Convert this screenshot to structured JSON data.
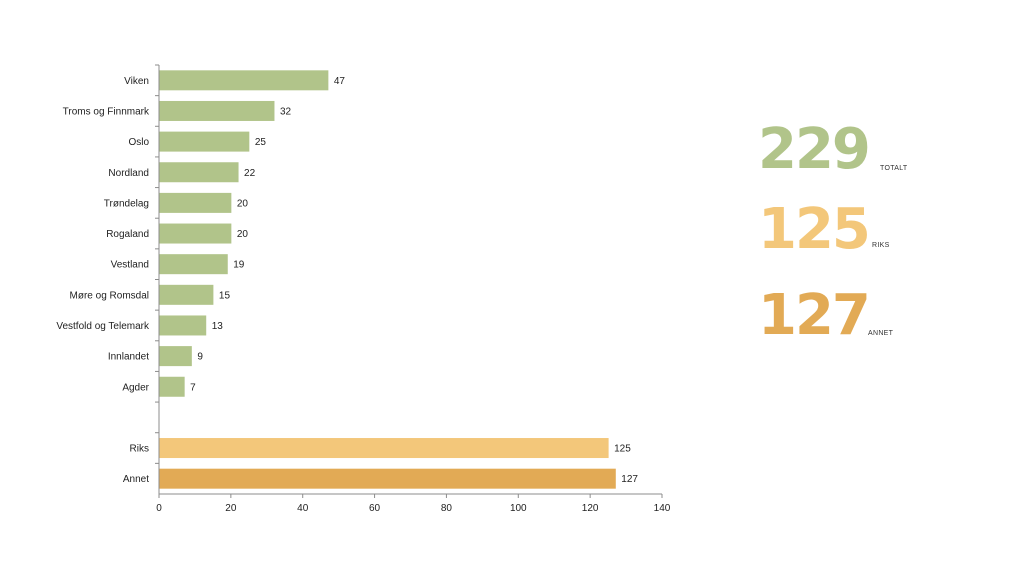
{
  "chart_data": {
    "type": "bar",
    "orientation": "horizontal",
    "title": "",
    "xlabel": "",
    "ylabel": "",
    "xlim": [
      0,
      140
    ],
    "x_ticks": [
      0,
      20,
      40,
      60,
      80,
      100,
      120,
      140
    ],
    "grid": false,
    "legend": "none",
    "categories": [
      "Viken",
      "Troms og Finnmark",
      "Oslo",
      "Nordland",
      "Trøndelag",
      "Rogaland",
      "Vestland",
      "Møre og Romsdal",
      "Vestfold og Telemark",
      "Innlandet",
      "Agder",
      "",
      "Riks",
      "Annet"
    ],
    "values": [
      47,
      32,
      25,
      22,
      20,
      20,
      19,
      15,
      13,
      9,
      7,
      null,
      125,
      127
    ],
    "bar_colors": [
      "#b1c48a",
      "#b1c48a",
      "#b1c48a",
      "#b1c48a",
      "#b1c48a",
      "#b1c48a",
      "#b1c48a",
      "#b1c48a",
      "#b1c48a",
      "#b1c48a",
      "#b1c48a",
      "#b1c48a",
      "#f3c77a",
      "#e2aa55"
    ]
  },
  "stats": [
    {
      "value": "229",
      "label": "TOTALT",
      "color": "#b1c48a"
    },
    {
      "value": "125",
      "label": "RIKS",
      "color": "#f3c77a"
    },
    {
      "value": "127",
      "label": "ANNET",
      "color": "#e2aa55"
    }
  ]
}
